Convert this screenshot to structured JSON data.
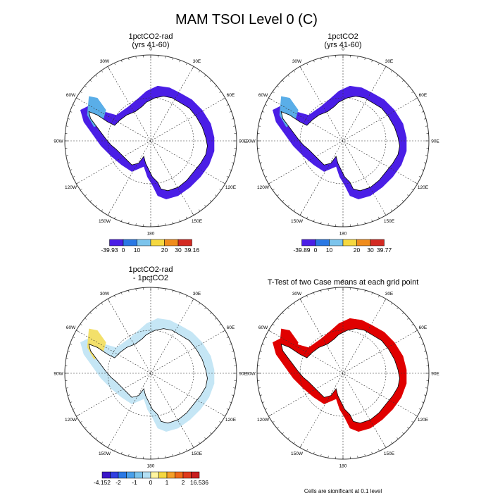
{
  "page": {
    "title": "MAM TSOI Level 0 (C)"
  },
  "colors": {
    "land_ice": "#ffffff",
    "coast": "#000000",
    "grid": "#333333",
    "sig": "#e00000"
  },
  "chart_data": [
    {
      "type": "polar-map",
      "id": "p1",
      "title_lines": [
        "1pctCO2-rad",
        "(yrs 41-60)"
      ],
      "lon_labels": [
        "0",
        "30E",
        "60E",
        "90E",
        "120E",
        "150E",
        "180",
        "150W",
        "120W",
        "90W",
        "60W",
        "30W"
      ],
      "legend": {
        "labels": [
          "-39.93",
          "0",
          "10",
          "20",
          "30",
          "39.16"
        ],
        "colors": [
          "#4a1ee6",
          "#2a78e4",
          "#7cc4ec",
          "#f5d840",
          "#f08c1c",
          "#d32a22"
        ]
      },
      "fill": "#4a1ee6",
      "accent": "#5aaee8"
    },
    {
      "type": "polar-map",
      "id": "p2",
      "title_lines": [
        "1pctCO2",
        "(yrs 41-60)"
      ],
      "lon_labels": [
        "0",
        "30E",
        "60E",
        "90E",
        "120E",
        "150E",
        "180",
        "150W",
        "120W",
        "90W",
        "60W",
        "30W"
      ],
      "legend": {
        "labels": [
          "-39.89",
          "0",
          "10",
          "20",
          "30",
          "39.77"
        ],
        "colors": [
          "#4a1ee6",
          "#2a78e4",
          "#7cc4ec",
          "#f5d840",
          "#f08c1c",
          "#d32a22"
        ]
      },
      "fill": "#4a1ee6",
      "accent": "#5aaee8"
    },
    {
      "type": "polar-map",
      "id": "p3",
      "title_lines": [
        "1pctCO2-rad",
        "- 1pctCO2"
      ],
      "lon_labels": [
        "0",
        "30E",
        "60E",
        "90E",
        "120E",
        "150E",
        "180",
        "150W",
        "120W",
        "90W",
        "60W",
        "30W"
      ],
      "legend": {
        "labels": [
          "-4.152",
          "-2",
          "-1",
          "0",
          "1",
          "2",
          "16.536"
        ],
        "colors": [
          "#3a16c8",
          "#3040e0",
          "#2a78e4",
          "#4aa0ea",
          "#7cc4ec",
          "#b4e0f4",
          "#fff5a0",
          "#f5d840",
          "#f5a028",
          "#f06a18",
          "#e03a1c",
          "#c81e1e"
        ]
      },
      "fill": "#bfe3f4",
      "accent": "#f3e06a"
    },
    {
      "type": "polar-map",
      "id": "p4",
      "title_lines": [
        "T-Test of two Case means at each grid point"
      ],
      "lon_labels": [
        "0",
        "30E",
        "60E",
        "90E",
        "120E",
        "150E",
        "180",
        "150W",
        "120W",
        "90W",
        "60W",
        "30W"
      ],
      "footnote": "Cells are significant at 0.1 level",
      "fill": "#e00000",
      "accent": "#e00000"
    }
  ]
}
